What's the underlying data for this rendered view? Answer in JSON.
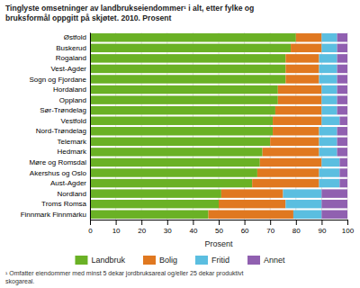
{
  "chart_data": {
    "type": "bar",
    "orientation": "horizontal",
    "stacked": true,
    "title": [
      "Tinglyste omsetninger av landbrukseiendommer¹ i alt, etter fylke og",
      "bruksformål oppgitt på skjøtet. 2010. Prosent"
    ],
    "xlabel": "Prosent",
    "footnote": [
      "¹ Omfatter eiendommer med minst 5 dekar jordbruksareal og/eller 25 dekar produktivt",
      "skogareal."
    ],
    "categories": [
      "Østfold",
      "Buskerud",
      "Rogaland",
      "Vest-Agder",
      "Sogn og Fjordane",
      "Hordaland",
      "Oppland",
      "Sør-Trøndelag",
      "Vestfold",
      "Nord-Trøndelag",
      "Telemark",
      "Hedmark",
      "Møre og Romsdal",
      "Akershus og Oslo",
      "Aust-Agder",
      "Nordland",
      "Troms Romsa",
      "Finnmark Finnmárku"
    ],
    "series": [
      {
        "name": "Landbruk",
        "color": "#6ab125",
        "values": [
          80,
          78,
          76,
          76,
          76,
          73,
          73,
          72,
          71,
          71,
          70,
          67,
          66,
          65,
          63,
          51,
          50,
          46
        ]
      },
      {
        "name": "Bolig",
        "color": "#e07820",
        "values": [
          10,
          12,
          13,
          13,
          13,
          17,
          17,
          18,
          19,
          18,
          19,
          22,
          24,
          24,
          26,
          24,
          26,
          33
        ]
      },
      {
        "name": "Fritid",
        "color": "#5bbee0",
        "values": [
          6,
          6,
          7,
          7,
          7,
          6,
          6,
          6,
          7,
          7,
          7,
          7,
          7,
          8,
          8,
          15,
          14,
          11
        ]
      },
      {
        "name": "Annet",
        "color": "#9060b0",
        "values": [
          4,
          4,
          4,
          4,
          4,
          4,
          4,
          4,
          3,
          4,
          4,
          4,
          3,
          3,
          3,
          10,
          10,
          10
        ]
      }
    ],
    "xlim": [
      0,
      100
    ],
    "xticks": [
      0,
      10,
      20,
      30,
      40,
      50,
      60,
      70,
      80,
      90,
      100
    ],
    "grid": true,
    "legend": "bottom"
  }
}
